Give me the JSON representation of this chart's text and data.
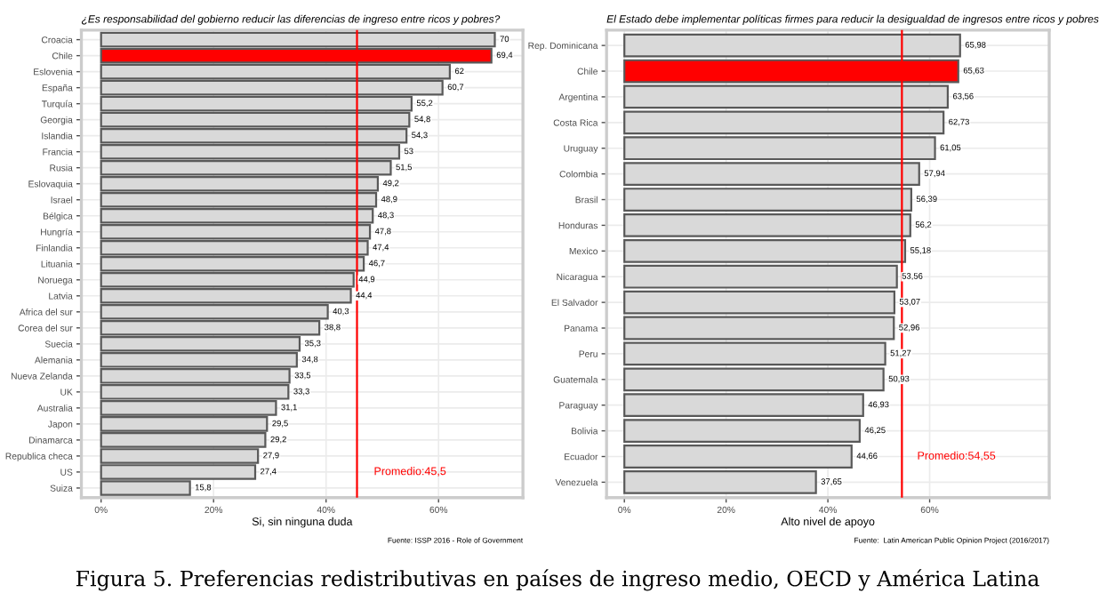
{
  "chart_data": [
    {
      "type": "bar",
      "orientation": "horizontal",
      "title": "¿Es responsabilidad del gobierno reducir las diferencias de ingreso entre ricos y pobres?",
      "xlabel": "Si, sin ninguna duda",
      "categories": [
        "Croacia",
        "Chile",
        "Eslovenia",
        "España",
        "Turquía",
        "Georgia",
        "Islandia",
        "Francia",
        "Rusia",
        "Eslovaquia",
        "Israel",
        "Bélgica",
        "Hungría",
        "Finlandia",
        "Lituania",
        "Noruega",
        "Latvia",
        "Africa del sur",
        "Corea del sur",
        "Suecia",
        "Alemania",
        "Nueva Zelanda",
        "UK",
        "Australia",
        "Japon",
        "Dinamarca",
        "Republica checa",
        "US",
        "Suiza"
      ],
      "values": [
        70,
        69.4,
        62,
        60.7,
        55.2,
        54.8,
        54.3,
        53,
        51.5,
        49.2,
        48.9,
        48.3,
        47.8,
        47.4,
        46.7,
        44.9,
        44.4,
        40.3,
        38.8,
        35.3,
        34.8,
        33.5,
        33.3,
        31.1,
        29.5,
        29.2,
        27.9,
        27.4,
        15.8
      ],
      "value_labels": [
        "70",
        "69,4",
        "62",
        "60,7",
        "55,2",
        "54,8",
        "54,3",
        "53",
        "51,5",
        "49,2",
        "48,9",
        "48,3",
        "47,8",
        "47,4",
        "46,7",
        "44,9",
        "44,4",
        "40,3",
        "38,8",
        "35,3",
        "34,8",
        "33,5",
        "33,3",
        "31,1",
        "29,5",
        "29,2",
        "27,9",
        "27,4",
        "15,8"
      ],
      "colors": [
        "#d9d9d9",
        "#ff0000",
        "#d9d9d9",
        "#d9d9d9",
        "#d9d9d9",
        "#d9d9d9",
        "#d9d9d9",
        "#d9d9d9",
        "#d9d9d9",
        "#d9d9d9",
        "#d9d9d9",
        "#d9d9d9",
        "#d9d9d9",
        "#d9d9d9",
        "#d9d9d9",
        "#d9d9d9",
        "#d9d9d9",
        "#d9d9d9",
        "#d9d9d9",
        "#d9d9d9",
        "#d9d9d9",
        "#d9d9d9",
        "#d9d9d9",
        "#d9d9d9",
        "#d9d9d9",
        "#d9d9d9",
        "#d9d9d9",
        "#d9d9d9",
        "#d9d9d9"
      ],
      "xlim": [
        -3.5,
        75
      ],
      "xticks": [
        {
          "value": 0,
          "label": "0%"
        },
        {
          "value": 20,
          "label": "20%"
        },
        {
          "value": 40,
          "label": "40%"
        },
        {
          "value": 60,
          "label": "60%"
        }
      ],
      "ref_lines": [
        {
          "axis": "x",
          "value": 45.5,
          "label": "Promedio:45,5",
          "color": "#ff0000"
        }
      ],
      "grid": true,
      "annotations": [
        "Fuente: ISSP 2016 - Role of Government"
      ]
    },
    {
      "type": "bar",
      "orientation": "horizontal",
      "title": "El Estado debe implementar políticas firmes para reducir la desigualdad de ingresos entre ricos y pobres",
      "xlabel": "Alto nivel de apoyo",
      "categories": [
        "Rep. Dominicana",
        "Chile",
        "Argentina",
        "Costa Rica",
        "Uruguay",
        "Colombia",
        "Brasil",
        "Honduras",
        "Mexico",
        "Nicaragua",
        "El Salvador",
        "Panama",
        "Peru",
        "Guatemala",
        "Paraguay",
        "Bolivia",
        "Ecuador",
        "Venezuela"
      ],
      "values": [
        65.98,
        65.63,
        63.56,
        62.73,
        61.05,
        57.94,
        56.39,
        56.2,
        55.18,
        53.56,
        53.07,
        52.96,
        51.27,
        50.93,
        46.93,
        46.25,
        44.66,
        37.65
      ],
      "value_labels": [
        "65,98",
        "65,63",
        "63,56",
        "62,73",
        "61,05",
        "57,94",
        "56,39",
        "56,2",
        "55,18",
        "53,56",
        "53,07",
        "52,96",
        "51,27",
        "50,93",
        "46,93",
        "46,25",
        "44,66",
        "37,65"
      ],
      "colors": [
        "#d9d9d9",
        "#ff0000",
        "#d9d9d9",
        "#d9d9d9",
        "#d9d9d9",
        "#d9d9d9",
        "#d9d9d9",
        "#d9d9d9",
        "#d9d9d9",
        "#d9d9d9",
        "#d9d9d9",
        "#d9d9d9",
        "#d9d9d9",
        "#d9d9d9",
        "#d9d9d9",
        "#d9d9d9",
        "#d9d9d9",
        "#d9d9d9"
      ],
      "xlim": [
        -3.5,
        83.5
      ],
      "xticks": [
        {
          "value": 0,
          "label": "0%"
        },
        {
          "value": 20,
          "label": "20%"
        },
        {
          "value": 40,
          "label": "40%"
        },
        {
          "value": 60,
          "label": "60%"
        }
      ],
      "ref_lines": [
        {
          "axis": "x",
          "value": 54.55,
          "label": "Promedio:54,55",
          "color": "#ff0000"
        }
      ],
      "grid": true,
      "annotations": [
        "Fuente:  Latin American Public Opinion Project (2016/2017)",
        "Figura 5. Preferencias redistributivas en países de ingreso medio, OECD y América Latina"
      ]
    }
  ]
}
